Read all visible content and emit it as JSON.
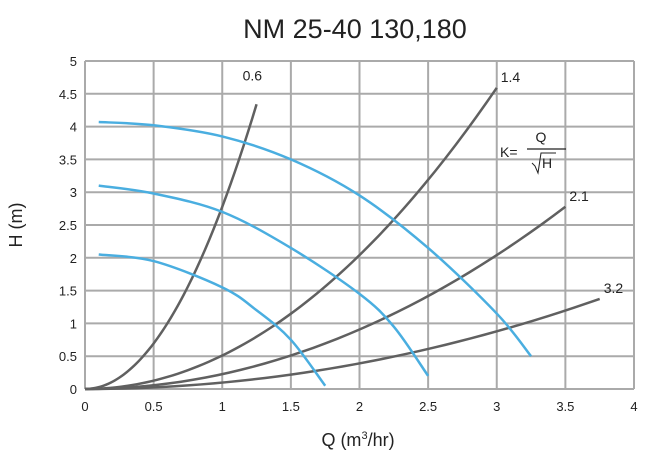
{
  "chart_data": {
    "type": "line",
    "title": "NM 25-40 130,180",
    "xlabel": "Q (m³/hr)",
    "xlabel_parts": {
      "pre": "Q (m",
      "sup": "3",
      "post": "/hr)"
    },
    "ylabel": "H (m)",
    "xlim": [
      0,
      4
    ],
    "ylim": [
      0,
      5
    ],
    "xticks": [
      "0",
      "0.5",
      "1",
      "1.5",
      "2",
      "2.5",
      "3",
      "3.5",
      "4"
    ],
    "yticks": [
      "0",
      "0.5",
      "1",
      "1.5",
      "2",
      "2.5",
      "3",
      "3.5",
      "4",
      "4.5",
      "5"
    ],
    "grid": true,
    "formula": {
      "lhs": "K=",
      "numerator": "Q",
      "denominator": "H"
    },
    "colors": {
      "pump_curve": "#4aaee0",
      "system_curve": "#606060",
      "grid": "#aaaaaa"
    },
    "pump_curves": [
      {
        "x": [
          0.1,
          0.5,
          1,
          1.5,
          2,
          2.5,
          3,
          3.25
        ],
        "y": [
          4.07,
          4.02,
          3.85,
          3.5,
          2.95,
          2.15,
          1.15,
          0.5
        ]
      },
      {
        "x": [
          0.1,
          0.5,
          1,
          1.5,
          2,
          2.25,
          2.5
        ],
        "y": [
          3.1,
          2.98,
          2.7,
          2.15,
          1.45,
          0.95,
          0.2
        ]
      },
      {
        "x": [
          0.1,
          0.5,
          1,
          1.25,
          1.5,
          1.75
        ],
        "y": [
          2.05,
          1.95,
          1.55,
          1.2,
          0.75,
          0.05
        ]
      }
    ],
    "system_curves": [
      {
        "name": "0.6",
        "K": 0.6,
        "xmax": 1.25
      },
      {
        "name": "1.4",
        "K": 1.4,
        "xmax": 3.0
      },
      {
        "name": "2.1",
        "K": 2.1,
        "xmax": 3.5
      },
      {
        "name": "3.2",
        "K": 3.2,
        "xmax": 3.75
      }
    ]
  }
}
